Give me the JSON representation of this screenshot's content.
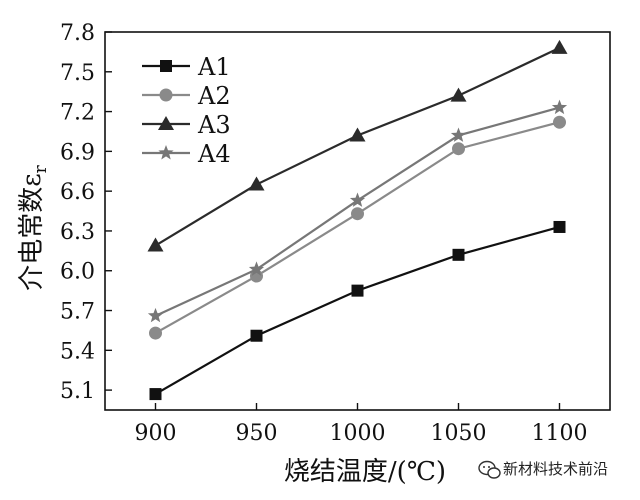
{
  "chart_data": {
    "type": "line",
    "title": "",
    "xlabel": "烧结温度/(℃)",
    "ylabel": "介电常数ε",
    "ylabel_sub": "r",
    "x": [
      900,
      950,
      1000,
      1050,
      1100
    ],
    "xlim": [
      875,
      1125
    ],
    "ylim": [
      4.95,
      7.8
    ],
    "yticks": [
      5.1,
      5.4,
      5.7,
      6.0,
      6.3,
      6.6,
      6.9,
      7.2,
      7.5,
      7.8
    ],
    "xticks": [
      900,
      950,
      1000,
      1050,
      1100
    ],
    "grid": false,
    "legend_position": "top-left",
    "series": [
      {
        "name": "A1",
        "marker": "square",
        "color": "#111111",
        "values": [
          5.07,
          5.51,
          5.85,
          6.12,
          6.33
        ]
      },
      {
        "name": "A2",
        "marker": "circle",
        "color": "#8a8a8a",
        "values": [
          5.53,
          5.96,
          6.43,
          6.92,
          7.12
        ]
      },
      {
        "name": "A3",
        "marker": "triangle",
        "color": "#2b2b2b",
        "values": [
          6.19,
          6.65,
          7.02,
          7.32,
          7.68
        ]
      },
      {
        "name": "A4",
        "marker": "star",
        "color": "#777777",
        "values": [
          5.66,
          6.01,
          6.53,
          7.02,
          7.23
        ]
      }
    ]
  },
  "watermark": {
    "icon": "wechat-icon",
    "text": "新材料技术前沿"
  }
}
